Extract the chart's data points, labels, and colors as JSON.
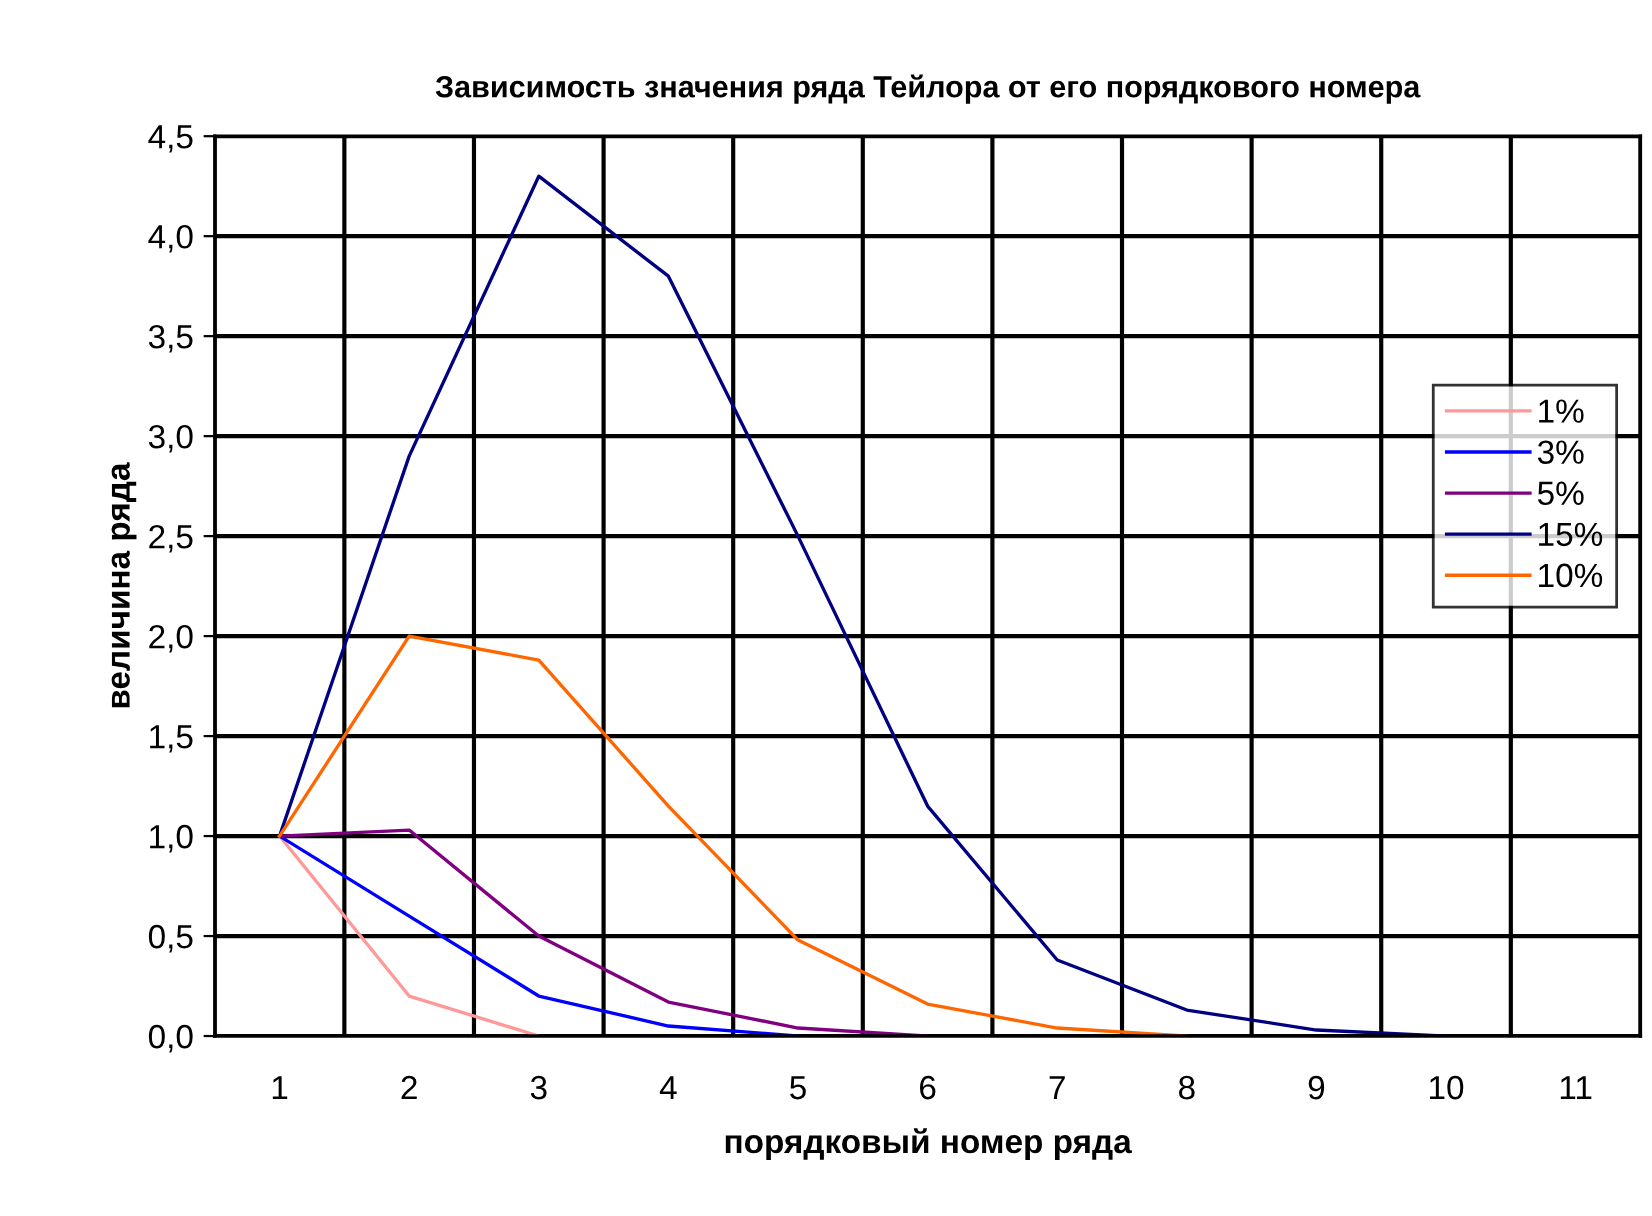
{
  "chart_data": {
    "type": "line",
    "title": "Зависимость значения ряда Тейлора от его порядкового номера",
    "xlabel": "порядковый номер ряда",
    "ylabel": "величина ряда",
    "categories": [
      "1",
      "2",
      "3",
      "4",
      "5",
      "6",
      "7",
      "8",
      "9",
      "10",
      "11"
    ],
    "series": [
      {
        "name": "1%",
        "color": "#ff9999",
        "values": [
          1.0,
          0.2,
          0.0,
          null,
          null,
          null,
          null,
          null,
          null,
          null,
          null
        ]
      },
      {
        "name": "3%",
        "color": "#0000ff",
        "values": [
          1.0,
          0.6,
          0.2,
          0.05,
          0.0,
          null,
          null,
          null,
          null,
          null,
          null
        ]
      },
      {
        "name": "5%",
        "color": "#800080",
        "values": [
          1.0,
          1.03,
          0.5,
          0.17,
          0.04,
          0.0,
          null,
          null,
          null,
          null,
          null
        ]
      },
      {
        "name": "15%",
        "color": "#000080",
        "values": [
          1.0,
          2.9,
          4.3,
          3.8,
          2.5,
          1.15,
          0.38,
          0.13,
          0.03,
          0.0,
          null
        ]
      },
      {
        "name": "10%",
        "color": "#ff6600",
        "values": [
          1.0,
          2.0,
          1.88,
          1.15,
          0.48,
          0.16,
          0.04,
          0.0,
          null,
          null,
          null
        ]
      }
    ],
    "ylim": [
      0,
      4.5
    ],
    "yticks": [
      {
        "value": 0,
        "label": "0,0"
      },
      {
        "value": 0.5,
        "label": "0,5"
      },
      {
        "value": 1,
        "label": "1,0"
      },
      {
        "value": 1.5,
        "label": "1,5"
      },
      {
        "value": 2,
        "label": "2,0"
      },
      {
        "value": 2.5,
        "label": "2,5"
      },
      {
        "value": 3,
        "label": "3,0"
      },
      {
        "value": 3.5,
        "label": "3,5"
      },
      {
        "value": 4,
        "label": "4,0"
      },
      {
        "value": 4.5,
        "label": "4,5"
      }
    ],
    "grid": true,
    "legend": "right",
    "marker": "none",
    "line_style": "solid"
  }
}
